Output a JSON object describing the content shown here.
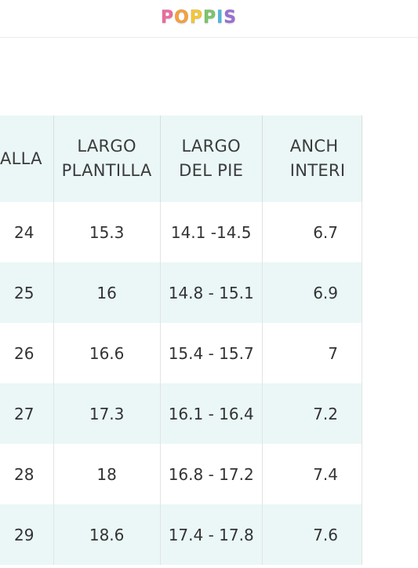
{
  "header": {
    "logo": {
      "text": "POPPIS",
      "letters": [
        {
          "char": "P",
          "color": "#f06aa0"
        },
        {
          "char": "O",
          "color": "#f9a13a"
        },
        {
          "char": "P",
          "color": "#f7c832"
        },
        {
          "char": "P",
          "color": "#7cc66a"
        },
        {
          "char": "I",
          "color": "#4fb7e0"
        },
        {
          "char": "S",
          "color": "#9b6fd6"
        }
      ]
    }
  },
  "size_table": {
    "header_bg": "#eaf7f6",
    "columns": [
      {
        "line1": "ALLA",
        "line2": ""
      },
      {
        "line1": "LARGO",
        "line2": "PLANTILLA"
      },
      {
        "line1": "LARGO",
        "line2": "DEL PIE"
      },
      {
        "line1": "ANCH",
        "line2": "INTERI"
      }
    ],
    "rows": [
      {
        "talla": "24",
        "largo_plantilla": "15.3",
        "largo_pie": "14.1 -14.5",
        "ancho": "6.7"
      },
      {
        "talla": "25",
        "largo_plantilla": "16",
        "largo_pie": "14.8 - 15.1",
        "ancho": "6.9"
      },
      {
        "talla": "26",
        "largo_plantilla": "16.6",
        "largo_pie": "15.4 - 15.7",
        "ancho": "7"
      },
      {
        "talla": "27",
        "largo_plantilla": "17.3",
        "largo_pie": "16.1 - 16.4",
        "ancho": "7.2"
      },
      {
        "talla": "28",
        "largo_plantilla": "18",
        "largo_pie": "16.8 - 17.2",
        "ancho": "7.4"
      },
      {
        "talla": "29",
        "largo_plantilla": "18.6",
        "largo_pie": "17.4 - 17.8",
        "ancho": "7.6"
      }
    ]
  }
}
